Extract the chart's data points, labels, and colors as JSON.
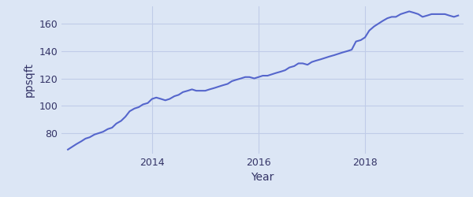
{
  "xlabel": "Year",
  "ylabel": "ppsqft",
  "background_color": "#dce6f5",
  "line_color": "#5566cc",
  "line_width": 1.5,
  "ylim": [
    65,
    173
  ],
  "xlim_start": 2012.3,
  "xlim_end": 2019.85,
  "xticks": [
    2014,
    2016,
    2018
  ],
  "yticks": [
    80,
    100,
    120,
    140,
    160
  ],
  "grid_color": "#c0cce8",
  "grid_alpha": 1.0,
  "data_x": [
    2012.42,
    2012.5,
    2012.58,
    2012.67,
    2012.75,
    2012.83,
    2012.92,
    2013.0,
    2013.08,
    2013.17,
    2013.25,
    2013.33,
    2013.42,
    2013.5,
    2013.58,
    2013.67,
    2013.75,
    2013.83,
    2013.92,
    2014.0,
    2014.08,
    2014.17,
    2014.25,
    2014.33,
    2014.42,
    2014.5,
    2014.58,
    2014.67,
    2014.75,
    2014.83,
    2014.92,
    2015.0,
    2015.08,
    2015.17,
    2015.25,
    2015.33,
    2015.42,
    2015.5,
    2015.58,
    2015.67,
    2015.75,
    2015.83,
    2015.92,
    2016.0,
    2016.08,
    2016.17,
    2016.25,
    2016.33,
    2016.42,
    2016.5,
    2016.58,
    2016.67,
    2016.75,
    2016.83,
    2016.92,
    2017.0,
    2017.08,
    2017.17,
    2017.25,
    2017.33,
    2017.42,
    2017.5,
    2017.58,
    2017.67,
    2017.75,
    2017.83,
    2017.92,
    2018.0,
    2018.08,
    2018.17,
    2018.25,
    2018.33,
    2018.42,
    2018.5,
    2018.58,
    2018.67,
    2018.75,
    2018.83,
    2018.92,
    2019.0,
    2019.08,
    2019.17,
    2019.25,
    2019.33,
    2019.42,
    2019.5,
    2019.58,
    2019.67,
    2019.75
  ],
  "data_y": [
    68,
    70,
    72,
    74,
    76,
    77,
    79,
    80,
    81,
    83,
    84,
    87,
    89,
    92,
    96,
    98,
    99,
    101,
    102,
    105,
    106,
    105,
    104,
    105,
    107,
    108,
    110,
    111,
    112,
    111,
    111,
    111,
    112,
    113,
    114,
    115,
    116,
    118,
    119,
    120,
    121,
    121,
    120,
    121,
    122,
    122,
    123,
    124,
    125,
    126,
    128,
    129,
    131,
    131,
    130,
    132,
    133,
    134,
    135,
    136,
    137,
    138,
    139,
    140,
    141,
    147,
    148,
    150,
    155,
    158,
    160,
    162,
    164,
    165,
    165,
    167,
    168,
    169,
    168,
    167,
    165,
    166,
    167,
    167,
    167,
    167,
    166,
    165,
    166
  ]
}
